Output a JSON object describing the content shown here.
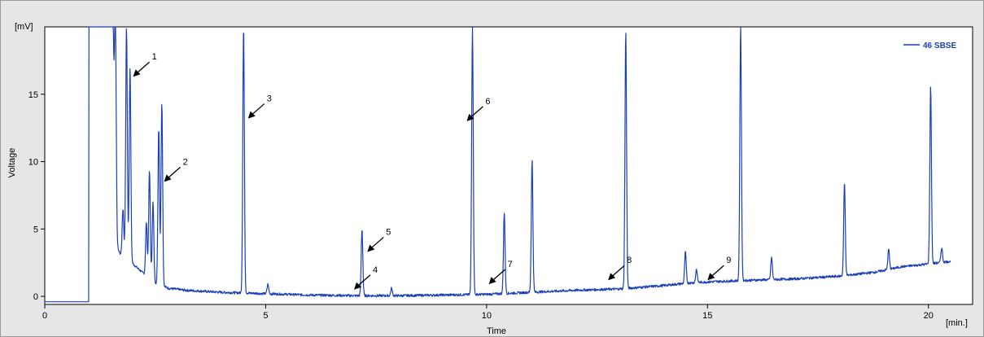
{
  "chart_data": {
    "type": "line",
    "title": "",
    "xlabel": "Time",
    "ylabel": "Voltage",
    "x_unit": "[min.]",
    "y_unit": "[mV]",
    "xlim": [
      0,
      21.0
    ],
    "ylim": [
      -0.6,
      20
    ],
    "x_ticks": [
      0,
      5,
      10,
      15,
      20
    ],
    "y_ticks": [
      0,
      5,
      10,
      15
    ],
    "grid": false,
    "legend_position": "top-right",
    "colors": {
      "series": "#1a3fb8",
      "plot_bg": "#ffffff",
      "frame_bg": "#e6e6e6"
    },
    "series": [
      {
        "name": "46 SBSE",
        "baseline": [
          [
            0,
            -0.4
          ],
          [
            1.0,
            -0.4
          ],
          [
            1.0,
            20
          ],
          [
            1.55,
            20
          ],
          [
            1.6,
            4.0
          ],
          [
            1.7,
            3.2
          ],
          [
            1.8,
            3.0
          ],
          [
            2.0,
            2.4
          ],
          [
            2.2,
            1.8
          ],
          [
            2.5,
            1.0
          ],
          [
            2.8,
            0.6
          ],
          [
            3.2,
            0.45
          ],
          [
            4.0,
            0.3
          ],
          [
            6.0,
            0.1
          ],
          [
            7.0,
            0.05
          ],
          [
            8.0,
            0.05
          ],
          [
            9.0,
            0.1
          ],
          [
            10.0,
            0.15
          ],
          [
            11.0,
            0.3
          ],
          [
            12.0,
            0.45
          ],
          [
            13.0,
            0.55
          ],
          [
            14.0,
            0.8
          ],
          [
            14.6,
            1.0
          ],
          [
            15.2,
            1.1
          ],
          [
            16.0,
            1.2
          ],
          [
            17.0,
            1.3
          ],
          [
            18.0,
            1.5
          ],
          [
            18.8,
            1.8
          ],
          [
            19.4,
            2.2
          ],
          [
            20.0,
            2.4
          ],
          [
            20.5,
            2.6
          ]
        ],
        "peaks": [
          {
            "x": 1.6,
            "y": 20
          },
          {
            "x": 1.77,
            "y": 6.5
          },
          {
            "x": 1.85,
            "y": 20
          },
          {
            "x": 1.93,
            "y": 17
          },
          {
            "x": 2.3,
            "y": 5.5
          },
          {
            "x": 2.37,
            "y": 9.3
          },
          {
            "x": 2.45,
            "y": 7.0
          },
          {
            "x": 2.58,
            "y": 12.5
          },
          {
            "x": 2.65,
            "y": 14.4
          },
          {
            "x": 4.5,
            "y": 20
          },
          {
            "x": 5.05,
            "y": 0.9
          },
          {
            "x": 7.18,
            "y": 5.0
          },
          {
            "x": 7.85,
            "y": 0.6
          },
          {
            "x": 9.68,
            "y": 20
          },
          {
            "x": 10.4,
            "y": 6.2
          },
          {
            "x": 11.03,
            "y": 10.1
          },
          {
            "x": 13.15,
            "y": 19.6
          },
          {
            "x": 14.5,
            "y": 3.3
          },
          {
            "x": 14.75,
            "y": 2.0
          },
          {
            "x": 15.75,
            "y": 20
          },
          {
            "x": 16.45,
            "y": 2.9
          },
          {
            "x": 18.1,
            "y": 8.4
          },
          {
            "x": 19.1,
            "y": 3.5
          },
          {
            "x": 20.05,
            "y": 15.6
          },
          {
            "x": 20.3,
            "y": 3.6
          }
        ]
      }
    ],
    "annotations": [
      {
        "label": "1",
        "x": 2.0,
        "y": 16.3
      },
      {
        "label": "2",
        "x": 2.7,
        "y": 8.5
      },
      {
        "label": "3",
        "x": 4.6,
        "y": 13.2
      },
      {
        "label": "4",
        "x": 7.0,
        "y": 0.5
      },
      {
        "label": "5",
        "x": 7.3,
        "y": 3.3
      },
      {
        "label": "6",
        "x": 9.55,
        "y": 13.0
      },
      {
        "label": "7",
        "x": 10.05,
        "y": 0.9
      },
      {
        "label": "8",
        "x": 12.75,
        "y": 1.2
      },
      {
        "label": "9",
        "x": 15.0,
        "y": 1.2
      }
    ]
  }
}
